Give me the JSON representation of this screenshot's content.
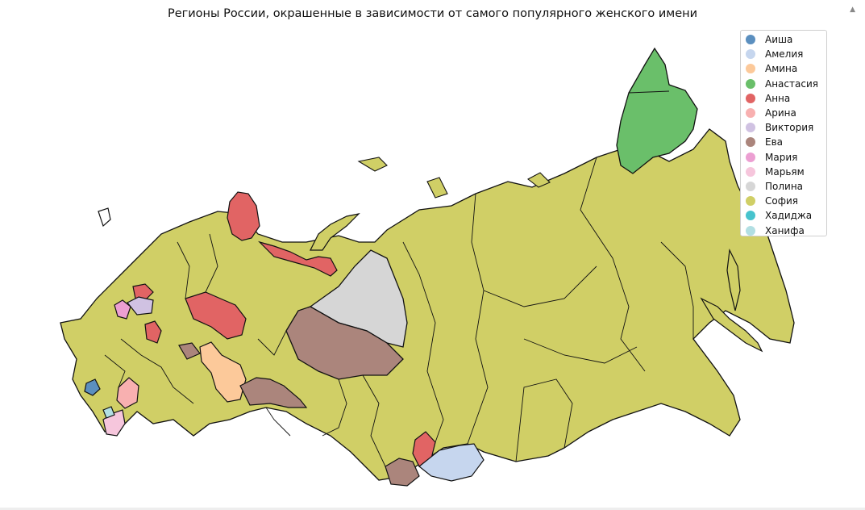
{
  "title": "Регионы России, окрашенные в зависимости от самого популярного женского имени",
  "legend": [
    {
      "label": "Аиша",
      "color": "#5b8fbf"
    },
    {
      "label": "Амелия",
      "color": "#c6d6ee"
    },
    {
      "label": "Амина",
      "color": "#fcc99a"
    },
    {
      "label": "Анастасия",
      "color": "#6abf6a"
    },
    {
      "label": "Анна",
      "color": "#e16464"
    },
    {
      "label": "Арина",
      "color": "#f8b0b0"
    },
    {
      "label": "Виктория",
      "color": "#d0c2e2"
    },
    {
      "label": "Ева",
      "color": "#ab857c"
    },
    {
      "label": "Мария",
      "color": "#ec9fd2"
    },
    {
      "label": "Марьям",
      "color": "#f6c6dc"
    },
    {
      "label": "Полина",
      "color": "#d6d6d6"
    },
    {
      "label": "София",
      "color": "#d0cf66"
    },
    {
      "label": "Хадиджа",
      "color": "#47c3cd"
    },
    {
      "label": "Ханифа",
      "color": "#b2dfe3"
    }
  ],
  "regions": [
    {
      "name_key": "base",
      "value": "София"
    },
    {
      "name_key": "chukotka",
      "value": "Анастасия"
    },
    {
      "name_key": "yamal",
      "value": "Полина"
    },
    {
      "name_key": "khmao",
      "value": "Ева"
    },
    {
      "name_key": "nenets",
      "value": "Анна"
    },
    {
      "name_key": "karelia",
      "value": "Анна"
    },
    {
      "name_key": "bashkiria",
      "value": "Амина"
    },
    {
      "name_key": "orenburg",
      "value": "Ева"
    },
    {
      "name_key": "altai",
      "value": "Анна"
    },
    {
      "name_key": "tuva",
      "value": "Амелия"
    },
    {
      "name_key": "kchr",
      "value": "Аиша"
    },
    {
      "name_key": "chechnya",
      "value": "Арина"
    },
    {
      "name_key": "dagestan",
      "value": "Марьям"
    },
    {
      "name_key": "ingushetia",
      "value": "Хадиджа"
    },
    {
      "name_key": "moscow",
      "value": "Мария"
    },
    {
      "name_key": "tver",
      "value": "Виктория"
    }
  ],
  "icons": {
    "scroll": "caret-up-icon"
  }
}
